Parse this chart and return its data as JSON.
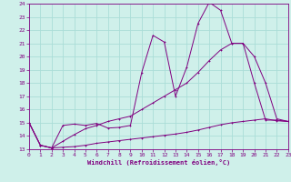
{
  "xlabel": "Windchill (Refroidissement éolien,°C)",
  "bg_color": "#cff0ea",
  "line_color": "#800080",
  "grid_color": "#aaddd8",
  "xmin": 0,
  "xmax": 23,
  "ymin": 13,
  "ymax": 24,
  "xticks": [
    0,
    1,
    2,
    3,
    4,
    5,
    6,
    7,
    8,
    9,
    10,
    11,
    12,
    13,
    14,
    15,
    16,
    17,
    18,
    19,
    20,
    21,
    22,
    23
  ],
  "yticks": [
    13,
    14,
    15,
    16,
    17,
    18,
    19,
    20,
    21,
    22,
    23,
    24
  ],
  "line1_x": [
    0,
    1,
    2,
    3,
    4,
    5,
    6,
    7,
    8,
    9,
    10,
    11,
    12,
    13,
    14,
    15,
    16,
    17,
    18,
    19,
    20,
    21,
    22,
    23
  ],
  "line1_y": [
    15.0,
    13.3,
    13.1,
    14.8,
    14.9,
    14.8,
    14.95,
    14.6,
    14.65,
    14.8,
    18.8,
    21.6,
    21.1,
    17.0,
    19.2,
    22.5,
    24.1,
    23.5,
    21.0,
    21.0,
    18.0,
    15.2,
    15.2,
    15.1
  ],
  "line2_x": [
    0,
    1,
    2,
    3,
    4,
    5,
    6,
    7,
    8,
    9,
    10,
    11,
    12,
    13,
    14,
    15,
    16,
    17,
    18,
    19,
    20,
    21,
    22,
    23
  ],
  "line2_y": [
    15.0,
    13.3,
    13.1,
    13.6,
    14.1,
    14.55,
    14.8,
    15.1,
    15.3,
    15.5,
    16.0,
    16.5,
    17.0,
    17.5,
    18.0,
    18.8,
    19.7,
    20.5,
    21.0,
    21.0,
    20.0,
    18.0,
    15.3,
    15.1
  ],
  "line3_x": [
    0,
    1,
    2,
    3,
    4,
    5,
    6,
    7,
    8,
    9,
    10,
    11,
    12,
    13,
    14,
    15,
    16,
    17,
    18,
    19,
    20,
    21,
    22,
    23
  ],
  "line3_y": [
    15.0,
    13.3,
    13.1,
    13.15,
    13.2,
    13.3,
    13.45,
    13.55,
    13.65,
    13.75,
    13.85,
    13.95,
    14.05,
    14.15,
    14.28,
    14.45,
    14.65,
    14.85,
    15.0,
    15.1,
    15.2,
    15.3,
    15.15,
    15.1
  ]
}
